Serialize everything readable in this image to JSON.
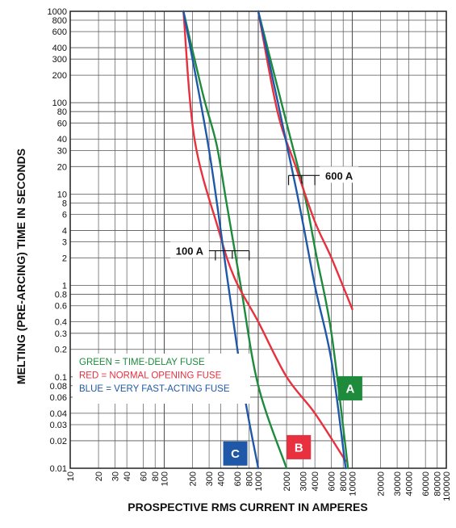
{
  "chart_data": {
    "type": "line",
    "xlabel": "PROSPECTIVE RMS CURRENT IN AMPERES",
    "ylabel": "MELTING (PRE-ARCING) TIME IN SECONDS",
    "x_scale": "log",
    "y_scale": "log",
    "xlim": [
      10,
      100000
    ],
    "ylim": [
      0.01,
      1000
    ],
    "grid": true,
    "x_ticks": [
      10,
      20,
      30,
      40,
      60,
      80,
      100,
      200,
      300,
      400,
      600,
      800,
      1000,
      2000,
      3000,
      4000,
      6000,
      8000,
      10000,
      20000,
      30000,
      40000,
      60000,
      80000,
      100000
    ],
    "x_tick_labels": [
      "10",
      "20",
      "30",
      "40",
      "60",
      "80",
      "100",
      "200",
      "300",
      "400",
      "600",
      "800",
      "1000",
      "2000",
      "3000",
      "4000",
      "6000",
      "8000",
      "10000",
      "20000",
      "30000",
      "40000",
      "60000",
      "80000",
      "100000"
    ],
    "y_ticks": [
      0.01,
      0.02,
      0.03,
      0.04,
      0.06,
      0.08,
      0.1,
      0.2,
      0.3,
      0.4,
      0.6,
      0.8,
      1,
      2,
      3,
      4,
      6,
      8,
      10,
      20,
      30,
      40,
      60,
      80,
      100,
      200,
      300,
      400,
      600,
      800,
      1000
    ],
    "y_tick_labels": [
      "0.01",
      "0.02",
      "0.03",
      "0.04",
      "0.06",
      "0.08",
      "0.1",
      "0.2",
      "0.3",
      "0.4",
      "0.6",
      "0.8",
      "1",
      "2",
      "3",
      "4",
      "6",
      "8",
      "10",
      "20",
      "30",
      "40",
      "60",
      "80",
      "100",
      "200",
      "300",
      "400",
      "600",
      "800",
      "1000"
    ],
    "legend": {
      "placement": "lower-left",
      "entries": [
        {
          "text": "GREEN = TIME-DELAY FUSE",
          "color": "#1e8a3c"
        },
        {
          "text": "RED = NORMAL OPENING FUSE",
          "color": "#e8303f"
        },
        {
          "text": "BLUE = VERY FAST-ACTING FUSE",
          "color": "#1f58a8"
        }
      ]
    },
    "series": [
      {
        "color": "#1e8a3c",
        "points": [
          [
            160,
            1000
          ],
          [
            260,
            120
          ],
          [
            360,
            35
          ],
          [
            460,
            8
          ],
          [
            650,
            1
          ],
          [
            1000,
            0.08
          ],
          [
            2000,
            0.01
          ]
        ]
      },
      {
        "color": "#1e8a3c",
        "points": [
          [
            1000,
            1000
          ],
          [
            2000,
            60
          ],
          [
            3100,
            10
          ],
          [
            4200,
            2
          ],
          [
            6000,
            0.3
          ],
          [
            9000,
            0.01
          ]
        ]
      },
      {
        "color": "#e8303f",
        "points": [
          [
            160,
            1000
          ],
          [
            210,
            40
          ],
          [
            380,
            4
          ],
          [
            560,
            1.2
          ],
          [
            1000,
            0.4
          ],
          [
            2000,
            0.1
          ],
          [
            4000,
            0.04
          ],
          [
            8500,
            0.012
          ]
        ]
      },
      {
        "color": "#e8303f",
        "points": [
          [
            1000,
            1000
          ],
          [
            1600,
            80
          ],
          [
            2500,
            20
          ],
          [
            4000,
            5
          ],
          [
            6000,
            2
          ],
          [
            10000,
            0.55
          ]
        ]
      },
      {
        "color": "#1f58a8",
        "points": [
          [
            160,
            1000
          ],
          [
            300,
            30
          ],
          [
            480,
            1
          ],
          [
            700,
            0.07
          ],
          [
            1000,
            0.01
          ]
        ]
      },
      {
        "color": "#1f58a8",
        "points": [
          [
            1000,
            1000
          ],
          [
            2500,
            12
          ],
          [
            4000,
            1
          ],
          [
            6000,
            0.15
          ],
          [
            8500,
            0.01
          ]
        ]
      }
    ],
    "annotations": [
      {
        "label": "100 A",
        "bracket": {
          "x": [
            350,
            800
          ],
          "y": 2.4
        }
      },
      {
        "label": "600 A",
        "bracket": {
          "x": [
            2100,
            4000
          ],
          "y": 16
        }
      }
    ],
    "badges": [
      {
        "text": "A",
        "x": 9500,
        "y": 0.075,
        "color": "#1e8a3c"
      },
      {
        "text": "B",
        "x": 2700,
        "y": 0.017,
        "color": "#e8303f"
      },
      {
        "text": "C",
        "x": 570,
        "y": 0.0145,
        "color": "#1f58a8"
      }
    ]
  }
}
